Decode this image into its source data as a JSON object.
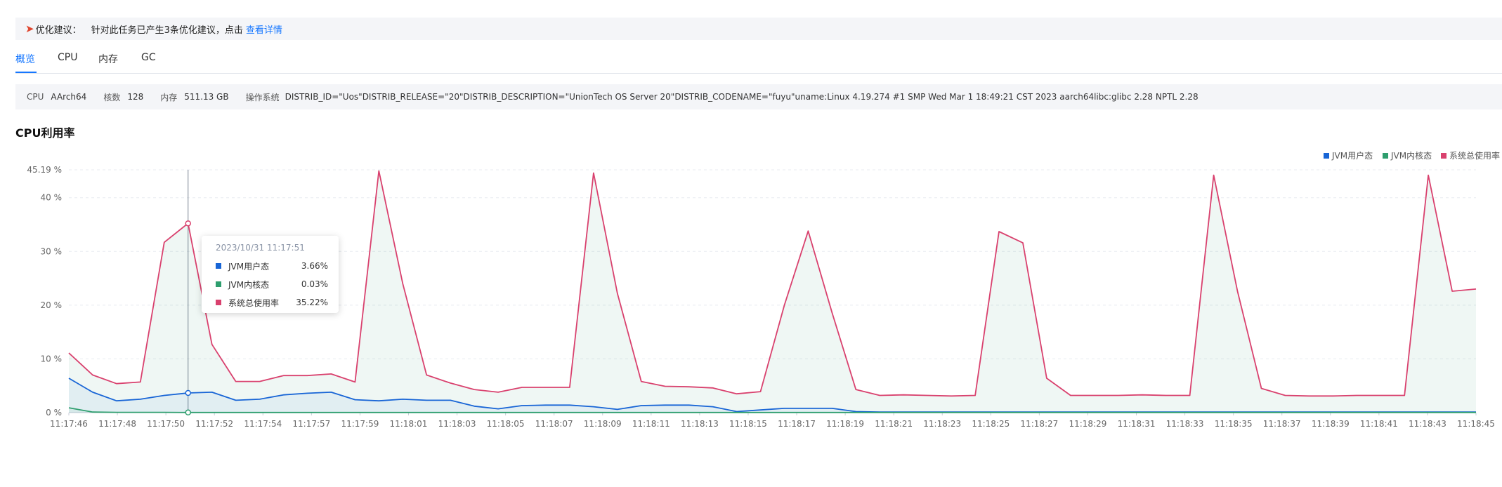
{
  "notice": {
    "icon": "rocket-icon",
    "lead": "优化建议：",
    "message": "针对此任务已产生3条优化建议，点击",
    "link": "查看详情"
  },
  "tabs": [
    {
      "label": "概览",
      "active": true
    },
    {
      "label": "CPU",
      "active": false
    },
    {
      "label": "内存",
      "active": false
    },
    {
      "label": "GC",
      "active": false
    }
  ],
  "info": {
    "cpu_label": "CPU",
    "cpu_value": "AArch64",
    "cores_label": "核数",
    "cores_value": "128",
    "memory_label": "内存",
    "memory_value": "511.13 GB",
    "os_label": "操作系统",
    "os_value": "DISTRIB_ID=\"Uos\"DISTRIB_RELEASE=\"20\"DISTRIB_DESCRIPTION=\"UnionTech OS Server 20\"DISTRIB_CODENAME=\"fuyu\"uname:Linux 4.19.274 #1 SMP Wed Mar 1 18:49:21 CST 2023 aarch64libc:glibc 2.28 NPTL 2.28"
  },
  "section_title": "CPU利用率",
  "tooltip": {
    "time": "2023/10/31 11:17:51",
    "rows": [
      {
        "name": "JVM用户态",
        "value": "3.66%"
      },
      {
        "name": "JVM内核态",
        "value": "0.03%"
      },
      {
        "name": "系统总使用率",
        "value": "35.22%"
      }
    ]
  },
  "chart_data": {
    "type": "line",
    "title": "CPU利用率",
    "y_ticks": [
      "0 %",
      "10 %",
      "20 %",
      "30 %",
      "40 %",
      "45.19 %"
    ],
    "ylim": [
      0,
      45.19
    ],
    "x_tick_labels": [
      "11:17:46",
      "11:17:48",
      "11:17:50",
      "11:17:52",
      "11:17:54",
      "11:17:57",
      "11:17:59",
      "11:18:01",
      "11:18:03",
      "11:18:05",
      "11:18:07",
      "11:18:09",
      "11:18:11",
      "11:18:13",
      "11:18:15",
      "11:18:17",
      "11:18:19",
      "11:18:21",
      "11:18:23",
      "11:18:25",
      "11:18:27",
      "11:18:29",
      "11:18:31",
      "11:18:33",
      "11:18:35",
      "11:18:37",
      "11:18:39",
      "11:18:41",
      "11:18:43",
      "11:18:45"
    ],
    "legend_position": "top-right",
    "grid": true,
    "area_fill": true,
    "highlight_index": 5,
    "series": [
      {
        "name": "JVM用户态",
        "color": "#1865d6",
        "values": [
          6.4,
          3.8,
          2.2,
          2.5,
          3.2,
          3.66,
          3.8,
          2.3,
          2.5,
          3.3,
          3.6,
          3.8,
          2.4,
          2.2,
          2.5,
          2.3,
          2.3,
          1.2,
          0.7,
          1.3,
          1.4,
          1.4,
          1.1,
          0.6,
          1.3,
          1.4,
          1.4,
          1.1,
          0.2,
          0.5,
          0.8,
          0.8,
          0.8,
          0.2,
          0.1,
          0.1,
          0.1,
          0.1,
          0.1,
          0.1,
          0.1,
          0.1,
          0.1,
          0.1,
          0.1,
          0.1,
          0.1,
          0.1,
          0.1,
          0.1,
          0.1,
          0.1,
          0.1,
          0.1,
          0.1,
          0.1,
          0.1,
          0.1,
          0.1,
          0.1
        ]
      },
      {
        "name": "JVM内核态",
        "color": "#2e9e6e",
        "values": [
          0.9,
          0.1,
          0.05,
          0.05,
          0.05,
          0.03,
          0.03,
          0.03,
          0.03,
          0.03,
          0.03,
          0.03,
          0.03,
          0.03,
          0.03,
          0.03,
          0.03,
          0.03,
          0.03,
          0.03,
          0.03,
          0.03,
          0.03,
          0.03,
          0.03,
          0.03,
          0.03,
          0.03,
          0.03,
          0.03,
          0.03,
          0.03,
          0.03,
          0.03,
          0.03,
          0.03,
          0.03,
          0.03,
          0.03,
          0.03,
          0.03,
          0.03,
          0.03,
          0.03,
          0.03,
          0.03,
          0.03,
          0.03,
          0.03,
          0.03,
          0.03,
          0.03,
          0.03,
          0.03,
          0.03,
          0.03,
          0.03,
          0.03,
          0.03,
          0.03
        ]
      },
      {
        "name": "系统总使用率",
        "color": "#d9416e",
        "values": [
          11.1,
          7.0,
          5.4,
          5.7,
          31.7,
          35.22,
          12.7,
          5.8,
          5.8,
          6.9,
          6.9,
          7.2,
          5.7,
          45.0,
          24.0,
          7.0,
          5.5,
          4.3,
          3.8,
          4.7,
          4.7,
          4.7,
          44.6,
          22.2,
          5.8,
          4.9,
          4.8,
          4.6,
          3.5,
          3.9,
          20.0,
          33.8,
          18.6,
          4.3,
          3.2,
          3.3,
          3.2,
          3.1,
          3.2,
          33.7,
          31.6,
          6.4,
          3.2,
          3.2,
          3.2,
          3.3,
          3.2,
          3.2,
          44.2,
          22.6,
          4.5,
          3.2,
          3.1,
          3.1,
          3.2,
          3.2,
          3.2,
          44.2,
          22.6,
          23.0
        ]
      }
    ]
  }
}
